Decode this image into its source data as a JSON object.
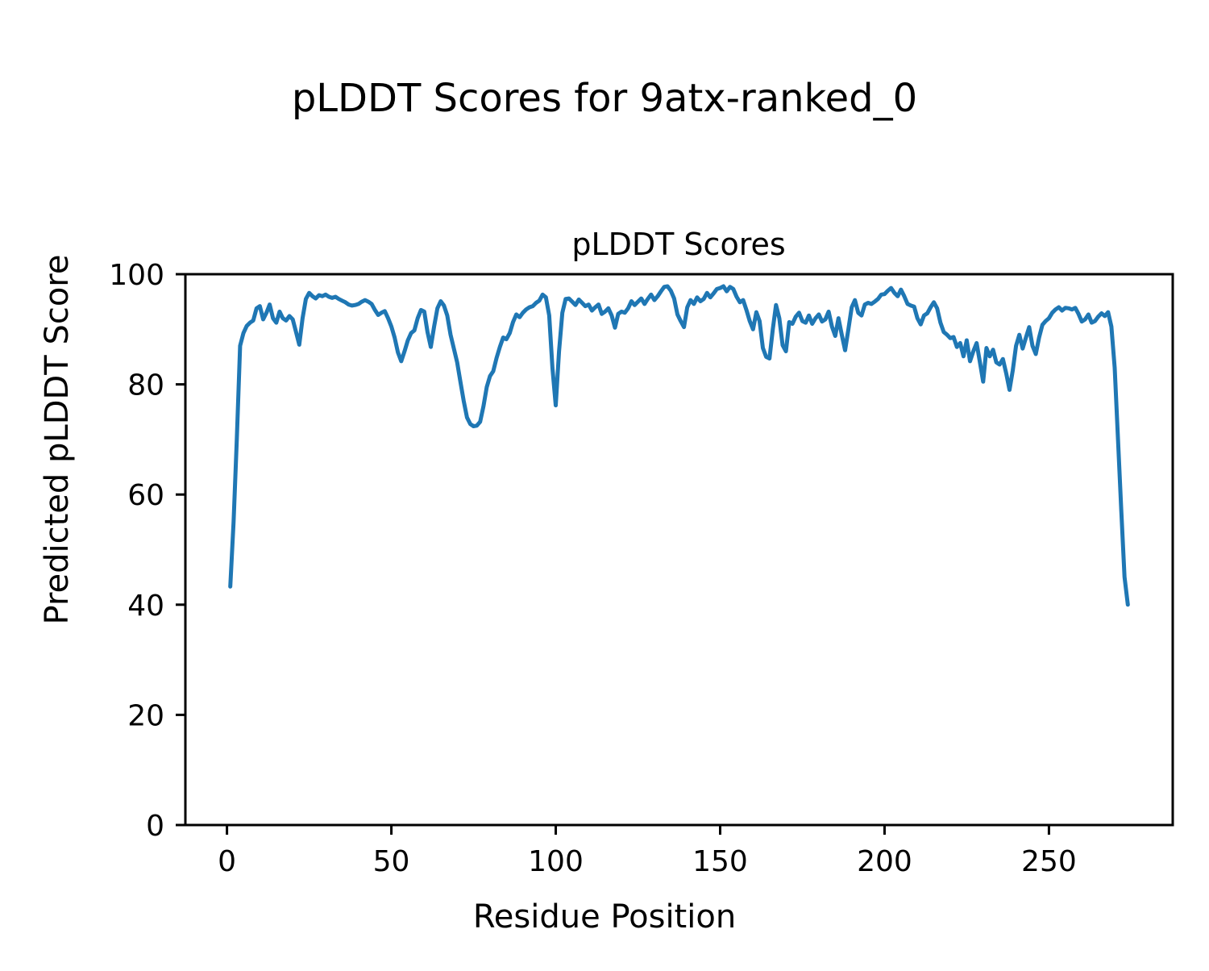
{
  "chart_data": {
    "type": "line",
    "title": "pLDDT Scores for 9atx-ranked_0",
    "axes_title": "pLDDT Scores",
    "xlabel": "Residue Position",
    "ylabel": "Predicted pLDDT Score",
    "xlim": [
      -12.65,
      287.65
    ],
    "ylim": [
      0,
      100
    ],
    "xticks": [
      0,
      50,
      100,
      150,
      200,
      250
    ],
    "yticks": [
      0,
      20,
      40,
      60,
      80,
      100
    ],
    "grid": false,
    "legend": "none",
    "line_color": "#1f77b4",
    "background_color": "#ffffff",
    "spine_color": "#000000",
    "series": [
      {
        "name": "pLDDT",
        "x_start": 1,
        "x_step": 1,
        "values": [
          43.3,
          55,
          70,
          87,
          89.3,
          90.6,
          91.2,
          91.6,
          93.8,
          94.2,
          91.8,
          93,
          94.5,
          92,
          91.2,
          93.2,
          92,
          91.6,
          92.4,
          91.8,
          89.5,
          87.2,
          92,
          95.5,
          96.6,
          96,
          95.6,
          96.2,
          96,
          96.3,
          95.9,
          95.7,
          95.9,
          95.5,
          95.2,
          94.9,
          94.5,
          94.3,
          94.4,
          94.6,
          95,
          95.3,
          95,
          94.6,
          93.5,
          92.6,
          93,
          93.3,
          92,
          90.5,
          88.5,
          85.8,
          84.2,
          86,
          88,
          89.3,
          89.8,
          92,
          93.5,
          93.2,
          89.5,
          86.8,
          90.5,
          93.8,
          95.1,
          94.3,
          92.5,
          89,
          86.5,
          84,
          80.5,
          77,
          74,
          72.8,
          72.4,
          72.5,
          73.2,
          76,
          79.5,
          81.5,
          82.4,
          84.8,
          86.8,
          88.5,
          88.2,
          89.3,
          91.3,
          92.7,
          92.2,
          93,
          93.6,
          94,
          94.2,
          94.8,
          95.2,
          96.3,
          95.8,
          92.5,
          83,
          76.2,
          86,
          93,
          95.5,
          95.6,
          95,
          94.4,
          95.4,
          94.8,
          94.2,
          94.5,
          93.4,
          94,
          94.5,
          92.8,
          93.2,
          93.8,
          92.5,
          90.3,
          92.8,
          93.2,
          93,
          93.8,
          95.1,
          94.4,
          95,
          95.6,
          94.6,
          95.5,
          96.3,
          95.3,
          96,
          96.9,
          97.7,
          97.8,
          97,
          95.6,
          92.7,
          91.5,
          90.4,
          94,
          95.3,
          94.6,
          95.8,
          95.1,
          95.5,
          96.6,
          95.8,
          96.5,
          97.3,
          97.5,
          97.8,
          96.9,
          97.7,
          97.3,
          95.9,
          94.9,
          95.3,
          93.5,
          91.5,
          90,
          93.1,
          91.5,
          86.6,
          85,
          84.7,
          90,
          94.4,
          92,
          87.1,
          86,
          91.3,
          91,
          92.3,
          93,
          91.5,
          91.2,
          92.5,
          91,
          92,
          92.7,
          91.4,
          91.8,
          93.2,
          90.5,
          88.8,
          92,
          89,
          86.2,
          90,
          94,
          95.3,
          93,
          92.5,
          94.5,
          94.8,
          94.6,
          95,
          95.5,
          96.3,
          96.4,
          97,
          97.5,
          96.6,
          96,
          97.2,
          96,
          94.6,
          94.3,
          94.1,
          92,
          90.9,
          92.5,
          92.9,
          94,
          94.9,
          93.8,
          91.2,
          89.5,
          89,
          88.4,
          88.6,
          86.8,
          87.5,
          85.1,
          88,
          84.2,
          86,
          87.5,
          84,
          80.5,
          86.6,
          85.1,
          86.3,
          84,
          83.6,
          84.6,
          82,
          79,
          82.5,
          87,
          89,
          86.5,
          88.5,
          90.4,
          87,
          85.5,
          88.5,
          90.8,
          91.5,
          92,
          93,
          93.6,
          94,
          93.4,
          93.9,
          93.8,
          93.6,
          93.9,
          92.8,
          91.4,
          91.8,
          92.7,
          91.2,
          91.5,
          92.3,
          92.9,
          92.4,
          93.1,
          90.5,
          83,
          70,
          57,
          45,
          40
        ]
      }
    ]
  }
}
